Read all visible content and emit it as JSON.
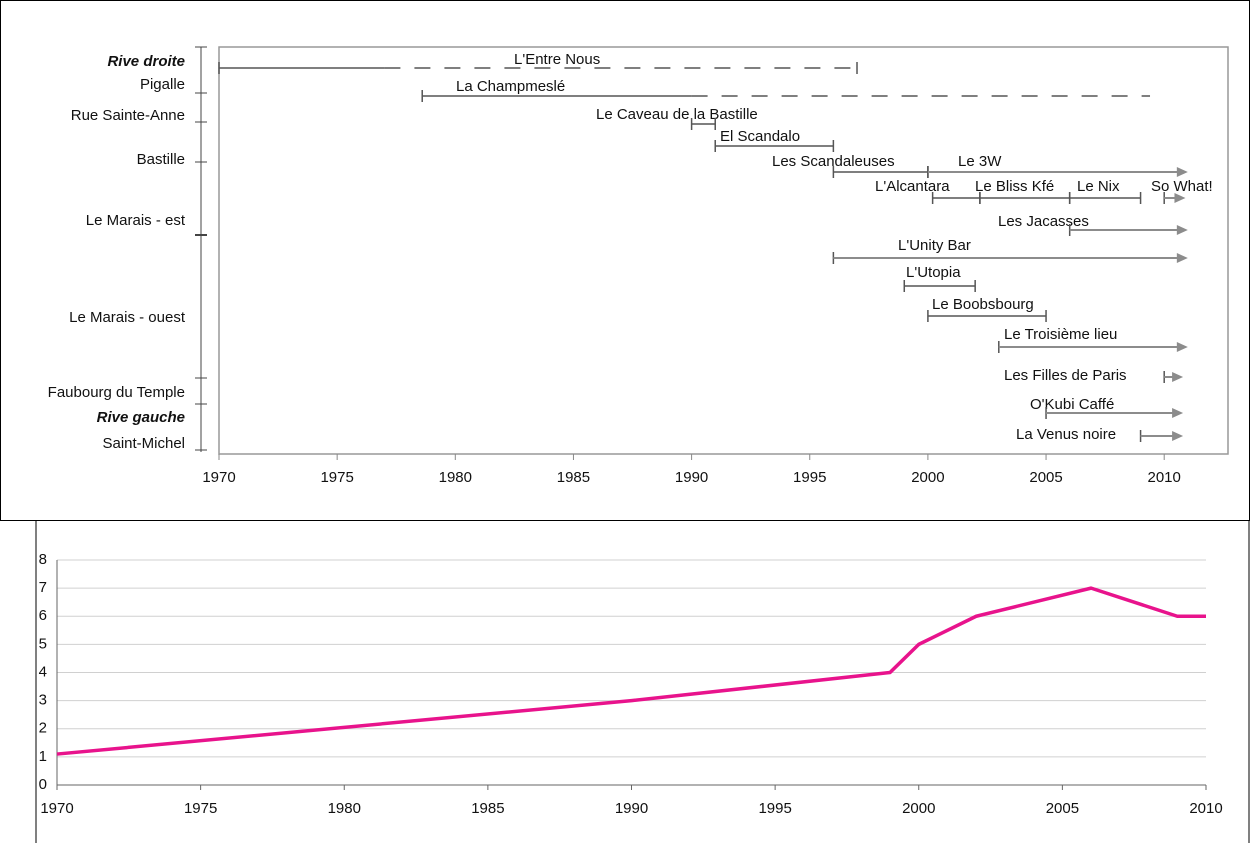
{
  "chart_data": [
    {
      "type": "timeline",
      "y_labels": [
        {
          "text": "Rive droite",
          "emphasis": true
        },
        {
          "text": "Pigalle"
        },
        {
          "text": "Rue Sainte-Anne"
        },
        {
          "text": "Bastille"
        },
        {
          "text": "Le Marais - est"
        },
        {
          "text": "Le Marais - ouest"
        },
        {
          "text": "Faubourg du Temple"
        },
        {
          "text": "Rive gauche",
          "emphasis": true
        },
        {
          "text": "Saint-Michel"
        }
      ],
      "items": [
        {
          "name": "L'Entre Nous",
          "start": 1970,
          "dashed_from": 1977,
          "end": 1997
        },
        {
          "name": "La Champmeslé",
          "start": 1978.6,
          "dashed_from": 1990,
          "end": 2009.4
        },
        {
          "name": "Le Caveau de la Bastille",
          "start": 1990,
          "end": 1991
        },
        {
          "name": "El Scandalo",
          "start": 1991,
          "end": 1996
        },
        {
          "name": "Les Scandaleuses",
          "start": 1996,
          "end": 2000
        },
        {
          "name": "Le 3W",
          "start": 2000,
          "end": 2011,
          "ongoing": true
        },
        {
          "name": "L'Alcantara",
          "start": 2000.2,
          "end": 2002.2
        },
        {
          "name": "Le Bliss Kfé",
          "start": 2002.2,
          "end": 2006
        },
        {
          "name": "Le Nix",
          "start": 2006,
          "end": 2009
        },
        {
          "name": "So What!",
          "start": 2010,
          "end": 2010.9,
          "ongoing": true
        },
        {
          "name": "Les Jacasses",
          "start": 2006,
          "end": 2011,
          "ongoing": true
        },
        {
          "name": "L'Unity Bar",
          "start": 1996,
          "end": 2011,
          "ongoing": true
        },
        {
          "name": "L'Utopia",
          "start": 1999,
          "end": 2002
        },
        {
          "name": "Le Boobsbourg",
          "start": 2000,
          "end": 2005
        },
        {
          "name": "Le Troisième lieu",
          "start": 2003,
          "end": 2011,
          "ongoing": true
        },
        {
          "name": "Les Filles de Paris",
          "start": 2010,
          "end": 2010.8,
          "ongoing": true
        },
        {
          "name": "O'Kubi Caffé",
          "start": 2005,
          "end": 2010.8,
          "ongoing": true
        },
        {
          "name": "La Venus noire",
          "start": 2009,
          "end": 2010.8,
          "ongoing": true
        }
      ],
      "xlim": [
        1970,
        2012.7
      ],
      "xticks": [
        1970,
        1975,
        1980,
        1985,
        1990,
        1995,
        2000,
        2005,
        2010
      ],
      "color": "#555555",
      "arrow_color": "#8c8c8c"
    },
    {
      "type": "line",
      "x": [
        1970,
        1990,
        1999,
        2000,
        2002,
        2006,
        2009,
        2010
      ],
      "values": [
        1.1,
        3,
        4,
        5,
        6,
        7,
        6,
        6
      ],
      "color": "#e8138c",
      "xlim": [
        1970,
        2010
      ],
      "xticks": [
        1970,
        1975,
        1980,
        1985,
        1990,
        1995,
        2000,
        2005,
        2010
      ],
      "ylim": [
        0,
        8
      ],
      "yticks": [
        0,
        1,
        2,
        3,
        4,
        5,
        6,
        7,
        8
      ],
      "grid": true
    }
  ]
}
